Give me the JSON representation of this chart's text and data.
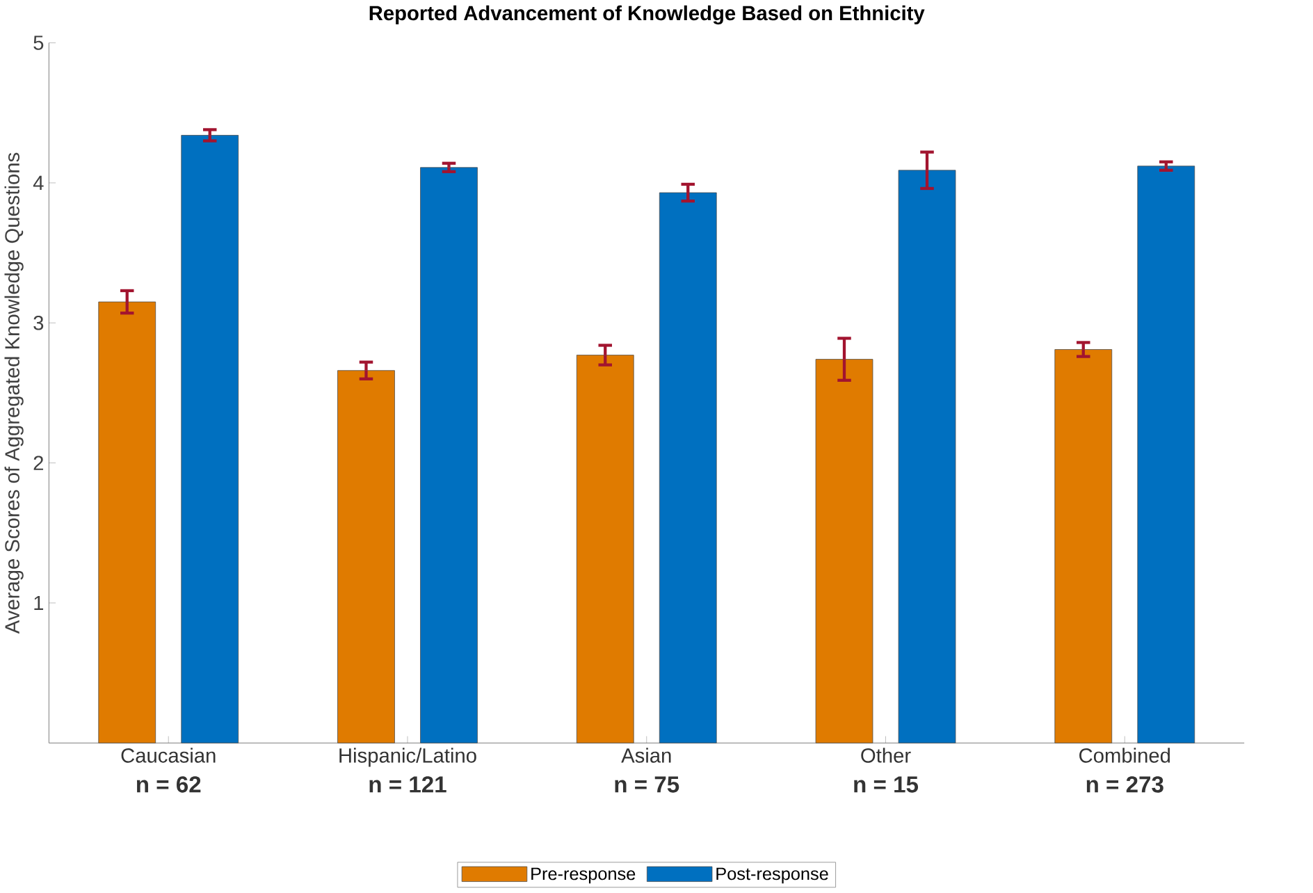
{
  "chart_data": {
    "type": "bar",
    "title": "Reported Advancement of Knowledge Based on Ethnicity",
    "ylabel": "Average Scores of Aggregated Knowledge Questions",
    "categories": [
      "Caucasian",
      "Hispanic/Latino",
      "Asian",
      "Other",
      "Combined"
    ],
    "annotations": [
      "n = 62",
      "n = 121",
      "n = 75",
      "n = 15",
      "n = 273"
    ],
    "series": [
      {
        "name": "Pre-response",
        "color": "#e07b00",
        "values": [
          3.15,
          2.66,
          2.77,
          2.74,
          2.81
        ],
        "errors": [
          0.08,
          0.06,
          0.07,
          0.15,
          0.05
        ]
      },
      {
        "name": "Post-response",
        "color": "#0070c0",
        "values": [
          4.34,
          4.11,
          3.93,
          4.09,
          4.12
        ],
        "errors": [
          0.04,
          0.03,
          0.06,
          0.13,
          0.03
        ]
      }
    ],
    "ylim": [
      0,
      5
    ],
    "yticks": [
      1,
      2,
      3,
      4,
      5
    ],
    "legend": "bottom"
  }
}
